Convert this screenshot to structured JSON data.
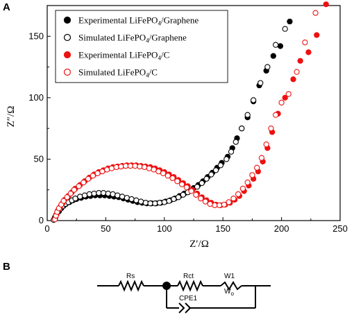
{
  "panels": {
    "a": "A",
    "b": "B"
  },
  "chart_data": {
    "type": "scatter",
    "xlabel": "Z′/Ω",
    "ylabel": "Z″/Ω",
    "xlim": [
      0,
      250
    ],
    "ylim": [
      0,
      175
    ],
    "xticks": [
      0,
      50,
      100,
      150,
      200,
      250
    ],
    "yticks": [
      0,
      50,
      100,
      150
    ],
    "legend_position": "top-left",
    "series": [
      {
        "name": "Experimental LiFePO4/Graphene",
        "label_parts": [
          "Experimental LiFePO",
          "4",
          "/Graphene"
        ],
        "color": "#000000",
        "filled": true,
        "points": [
          [
            6,
            1
          ],
          [
            7,
            3
          ],
          [
            8,
            5
          ],
          [
            10,
            7.5
          ],
          [
            12,
            10
          ],
          [
            14,
            12
          ],
          [
            16,
            13.5
          ],
          [
            19,
            15
          ],
          [
            22,
            16.5
          ],
          [
            25,
            17.5
          ],
          [
            29,
            18.5
          ],
          [
            33,
            19.5
          ],
          [
            37,
            20
          ],
          [
            41,
            20.5
          ],
          [
            45,
            20.5
          ],
          [
            49,
            20.5
          ],
          [
            53,
            20
          ],
          [
            57,
            19.5
          ],
          [
            61,
            19
          ],
          [
            65,
            18
          ],
          [
            69,
            17
          ],
          [
            73,
            16
          ],
          [
            77,
            15
          ],
          [
            81,
            14.5
          ],
          [
            85,
            14
          ],
          [
            89,
            14
          ],
          [
            93,
            14
          ],
          [
            97,
            14.5
          ],
          [
            101,
            15.5
          ],
          [
            105,
            16.5
          ],
          [
            109,
            18
          ],
          [
            113,
            20
          ],
          [
            117,
            22
          ],
          [
            121,
            24
          ],
          [
            125,
            26.5
          ],
          [
            129,
            29
          ],
          [
            133,
            32
          ],
          [
            137,
            35.5
          ],
          [
            141,
            39
          ],
          [
            145,
            43
          ],
          [
            149,
            47
          ],
          [
            154,
            52
          ],
          [
            158,
            59
          ],
          [
            162,
            67
          ],
          [
            166,
            75
          ],
          [
            171,
            84
          ],
          [
            176,
            97
          ],
          [
            181,
            110
          ],
          [
            187,
            122
          ],
          [
            193,
            134
          ],
          [
            199,
            142
          ],
          [
            207,
            162
          ]
        ]
      },
      {
        "name": "Simulated LiFePO4/Graphene",
        "label_parts": [
          "Simulated LiFePO",
          "4",
          "/Graphene"
        ],
        "color": "#000000",
        "filled": false,
        "points": [
          [
            5.5,
            0.5
          ],
          [
            6.5,
            2.5
          ],
          [
            7.5,
            4.5
          ],
          [
            9,
            7
          ],
          [
            11,
            9.5
          ],
          [
            13,
            11.5
          ],
          [
            15.5,
            13.5
          ],
          [
            18,
            15
          ],
          [
            21,
            16.5
          ],
          [
            24,
            18
          ],
          [
            28,
            19.5
          ],
          [
            32,
            20.5
          ],
          [
            36,
            21.5
          ],
          [
            40,
            22
          ],
          [
            44,
            22.5
          ],
          [
            48,
            22.5
          ],
          [
            52,
            22
          ],
          [
            56,
            21.5
          ],
          [
            60,
            20.5
          ],
          [
            64,
            19.5
          ],
          [
            68,
            18.5
          ],
          [
            72,
            17.5
          ],
          [
            76,
            16.5
          ],
          [
            80,
            15.5
          ],
          [
            84,
            14.5
          ],
          [
            88,
            14
          ],
          [
            92,
            14
          ],
          [
            96,
            14.5
          ],
          [
            100,
            15
          ],
          [
            104,
            16
          ],
          [
            108,
            17.5
          ],
          [
            112,
            19
          ],
          [
            116,
            21
          ],
          [
            120,
            23
          ],
          [
            124,
            25
          ],
          [
            128,
            27.5
          ],
          [
            132,
            30.5
          ],
          [
            136,
            34
          ],
          [
            140,
            37.5
          ],
          [
            144,
            41
          ],
          [
            148,
            45
          ],
          [
            153,
            50
          ],
          [
            157,
            56
          ],
          [
            161,
            64
          ],
          [
            166,
            75
          ],
          [
            171,
            86
          ],
          [
            176,
            98
          ],
          [
            182,
            112
          ],
          [
            188,
            125
          ],
          [
            195,
            143
          ],
          [
            203,
            156
          ]
        ]
      },
      {
        "name": "Experimental LiFePO4/C",
        "label_parts": [
          "Experimental LiFePO",
          "4",
          "/C"
        ],
        "color": "#ee1111",
        "filled": true,
        "points": [
          [
            7,
            2
          ],
          [
            8,
            5
          ],
          [
            9,
            8
          ],
          [
            11,
            11
          ],
          [
            13,
            14
          ],
          [
            15,
            17
          ],
          [
            18,
            20
          ],
          [
            21,
            23
          ],
          [
            24,
            26
          ],
          [
            28,
            29
          ],
          [
            32,
            32
          ],
          [
            36,
            35
          ],
          [
            40,
            37.5
          ],
          [
            44,
            39.5
          ],
          [
            48,
            41
          ],
          [
            52,
            42.5
          ],
          [
            56,
            43.5
          ],
          [
            60,
            44
          ],
          [
            64,
            44.5
          ],
          [
            68,
            45
          ],
          [
            72,
            45
          ],
          [
            76,
            45
          ],
          [
            80,
            44.5
          ],
          [
            84,
            44
          ],
          [
            88,
            43.5
          ],
          [
            92,
            42.5
          ],
          [
            96,
            41
          ],
          [
            100,
            39.5
          ],
          [
            104,
            37.5
          ],
          [
            108,
            35.5
          ],
          [
            112,
            33
          ],
          [
            116,
            30.5
          ],
          [
            120,
            28
          ],
          [
            124,
            25
          ],
          [
            128,
            22
          ],
          [
            132,
            19
          ],
          [
            136,
            16.5
          ],
          [
            140,
            14.5
          ],
          [
            144,
            13
          ],
          [
            148,
            12.5
          ],
          [
            152,
            13
          ],
          [
            156,
            14.5
          ],
          [
            160,
            17
          ],
          [
            164,
            20
          ],
          [
            168,
            24
          ],
          [
            172,
            28.5
          ],
          [
            176,
            34
          ],
          [
            180,
            40
          ],
          [
            184,
            48
          ],
          [
            188,
            59
          ],
          [
            192,
            72
          ],
          [
            197,
            87
          ],
          [
            203,
            100
          ],
          [
            210,
            115
          ],
          [
            216,
            130
          ],
          [
            223,
            137
          ],
          [
            230,
            151
          ],
          [
            238,
            176
          ]
        ]
      },
      {
        "name": "Simulated LiFePO4/C",
        "label_parts": [
          "Simulated LiFePO",
          "4",
          "/C"
        ],
        "color": "#ee1111",
        "filled": false,
        "points": [
          [
            6.5,
            1
          ],
          [
            7.5,
            4
          ],
          [
            8.5,
            7
          ],
          [
            10,
            10
          ],
          [
            12,
            13
          ],
          [
            14,
            16
          ],
          [
            17,
            19
          ],
          [
            20,
            22
          ],
          [
            23,
            25
          ],
          [
            27,
            28
          ],
          [
            31,
            31
          ],
          [
            35,
            34
          ],
          [
            39,
            36.5
          ],
          [
            43,
            38.5
          ],
          [
            47,
            40
          ],
          [
            51,
            41.5
          ],
          [
            55,
            42.5
          ],
          [
            59,
            43.5
          ],
          [
            63,
            44
          ],
          [
            67,
            44.5
          ],
          [
            71,
            44.5
          ],
          [
            75,
            44.5
          ],
          [
            79,
            44
          ],
          [
            83,
            43.5
          ],
          [
            87,
            42.5
          ],
          [
            91,
            41.5
          ],
          [
            95,
            40
          ],
          [
            99,
            38.5
          ],
          [
            103,
            36.5
          ],
          [
            107,
            34.5
          ],
          [
            111,
            32
          ],
          [
            115,
            29.5
          ],
          [
            119,
            27
          ],
          [
            123,
            24
          ],
          [
            127,
            21
          ],
          [
            131,
            18
          ],
          [
            135,
            15.5
          ],
          [
            139,
            13.5
          ],
          [
            143,
            12.5
          ],
          [
            147,
            12.5
          ],
          [
            151,
            13
          ],
          [
            155,
            15
          ],
          [
            159,
            18
          ],
          [
            163,
            21.5
          ],
          [
            167,
            26
          ],
          [
            171,
            31
          ],
          [
            175,
            37
          ],
          [
            179,
            43
          ],
          [
            183,
            51
          ],
          [
            187,
            62
          ],
          [
            191,
            75
          ],
          [
            195,
            86
          ],
          [
            200,
            96
          ],
          [
            206,
            103
          ],
          [
            213,
            121
          ],
          [
            220,
            145
          ],
          [
            229,
            169
          ]
        ]
      }
    ]
  },
  "circuit": {
    "labels": {
      "rs": "Rs",
      "rct": "Rct",
      "w": "W1",
      "w_sub": "W",
      "w_subscript": "o",
      "cpe": "CPE1"
    }
  }
}
